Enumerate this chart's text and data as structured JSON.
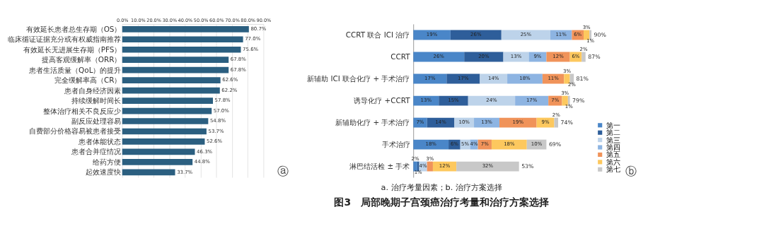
{
  "chart_data": [
    {
      "type": "bar",
      "orientation": "horizontal",
      "categories": [
        "有效延长患者总生存期（OS）",
        "临床循证证据充分或有权威指南推荐",
        "有效延长无进展生存期（PFS）",
        "提高客观缓解率（ORR）",
        "患者生活质量（QoL）的提升",
        "完全缓解率高（CR）",
        "患者自身经济因素",
        "持续缓解时间长",
        "整体治疗相关不良反应少",
        "副反应处理容易",
        "自费部分价格容易被患者接受",
        "患者体能状态",
        "患者合并症情况",
        "给药方便",
        "起效速度快"
      ],
      "values": [
        80.7,
        77.0,
        75.6,
        67.8,
        67.8,
        62.6,
        62.2,
        57.8,
        57.0,
        54.8,
        53.7,
        52.6,
        46.3,
        44.8,
        33.7
      ],
      "value_labels": [
        "80.7%",
        "77.0%",
        "75.6%",
        "67.8%",
        "67.8%",
        "62.6%",
        "62.2%",
        "57.8%",
        "57.0%",
        "54.8%",
        "53.7%",
        "52.6%",
        "46.3%",
        "44.8%",
        "33.7%"
      ],
      "color": "#2b5f80",
      "xlim": [
        0,
        90
      ],
      "xticks": [
        {
          "value": 0,
          "label": "0.0%"
        },
        {
          "value": 10,
          "label": "10.0%"
        },
        {
          "value": 20,
          "label": "20.0%"
        },
        {
          "value": 30,
          "label": "30.0%"
        },
        {
          "value": 40,
          "label": "40.0%"
        },
        {
          "value": 50,
          "label": "50.0%"
        },
        {
          "value": 60,
          "label": "60.0%"
        },
        {
          "value": 70,
          "label": "70.0%"
        },
        {
          "value": 80,
          "label": "80.0%"
        },
        {
          "value": 90,
          "label": "90.0%"
        }
      ],
      "grid": "x",
      "legend": false,
      "annotations": [
        "ⓐ"
      ]
    },
    {
      "type": "bar",
      "orientation": "horizontal",
      "stacked": true,
      "categories": [
        "CCRT 联合 ICI 治疗",
        "CCRT",
        "新辅助 ICI 联合化疗 + 手术治疗",
        "诱导化疗 +CCRT",
        "新辅助化疗 + 手术治疗",
        "手术治疗",
        "淋巴结活检 ± 手术"
      ],
      "series": [
        {
          "name": "第一",
          "color": "#4a86c8",
          "values": [
            19,
            26,
            17,
            13,
            7,
            18,
            2
          ],
          "value_labels": [
            "19%",
            "26%",
            "17%",
            "13%",
            "7%",
            "18%",
            "2%"
          ]
        },
        {
          "name": "第二",
          "color": "#2e5e9a",
          "values": [
            26,
            20,
            17,
            15,
            14,
            6,
            1
          ],
          "value_labels": [
            "26%",
            "20%",
            "17%",
            "15%",
            "14%",
            "6%",
            "1%"
          ]
        },
        {
          "name": "第三",
          "color": "#bdd3ea",
          "values": [
            25,
            13,
            14,
            24,
            10,
            5,
            4
          ],
          "value_labels": [
            "25%",
            "13%",
            "14%",
            "24%",
            "10%",
            "5%",
            "4%"
          ]
        },
        {
          "name": "第四",
          "color": "#8db4e2",
          "values": [
            11,
            9,
            18,
            17,
            13,
            4,
            0
          ],
          "value_labels": [
            "11%",
            "9%",
            "18%",
            "17%",
            "13%",
            "4%",
            null
          ]
        },
        {
          "name": "第五",
          "color": "#f0935a",
          "values": [
            6,
            12,
            11,
            7,
            19,
            7,
            3
          ],
          "value_labels": [
            "6%",
            "12%",
            "11%",
            "7%",
            "19%",
            "7%",
            "3%"
          ]
        },
        {
          "name": "第六",
          "color": "#fdc85e",
          "values": [
            3,
            6,
            3,
            3,
            9,
            18,
            12
          ],
          "value_labels": [
            "3%",
            "6%",
            "3%",
            "3%",
            "9%",
            "18%",
            "12%"
          ]
        },
        {
          "name": "第七",
          "color": "#c8c8c8",
          "values": [
            1,
            2,
            2,
            1,
            2,
            10,
            32
          ],
          "value_labels": [
            "1%",
            "2%",
            "2%",
            "1%",
            "2%",
            "10%",
            "32%"
          ]
        }
      ],
      "totals": [
        "90%",
        "87%",
        "81%",
        "79%",
        "74%",
        "69%",
        "53%"
      ],
      "legend": "bottom right",
      "annotations": [
        "ⓑ",
        "a. 治疗考量因素；b. 治疗方案选择",
        "图3　局部晚期子宫颈癌治疗考量和治疗方案选择"
      ]
    }
  ]
}
